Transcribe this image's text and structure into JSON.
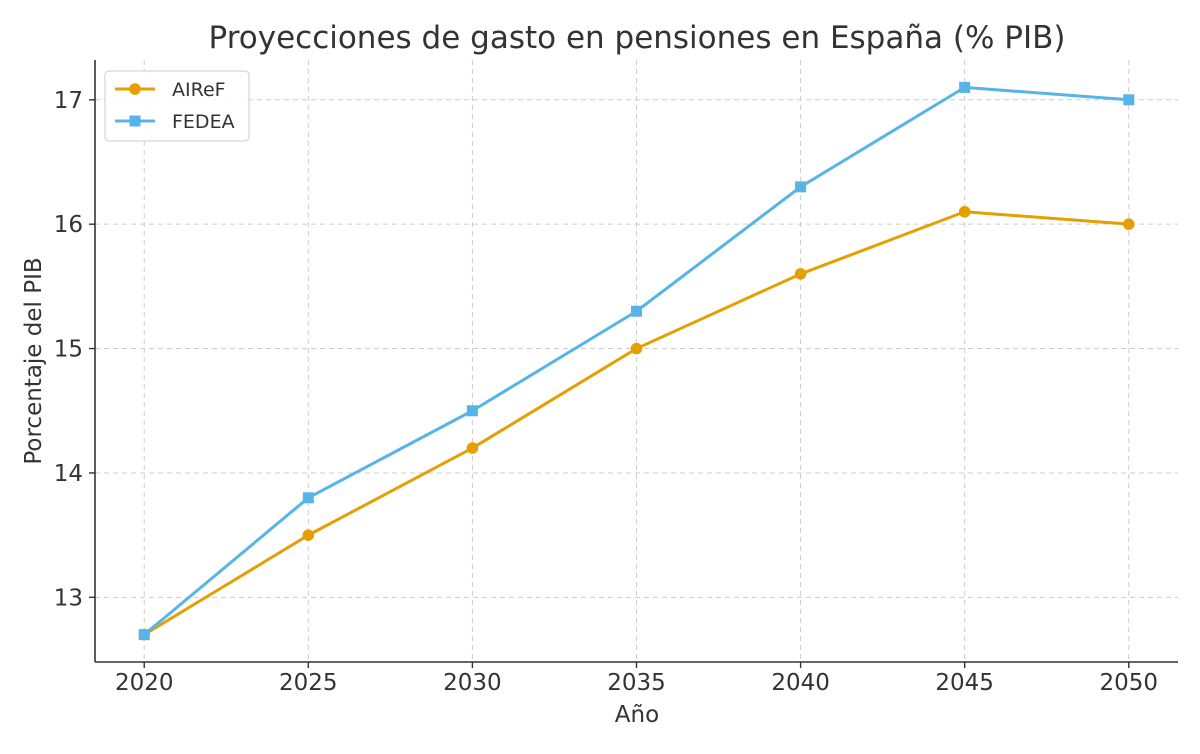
{
  "chart_data": {
    "type": "line",
    "title": "Proyecciones de gasto en pensiones en España (% PIB)",
    "xlabel": "Año",
    "ylabel": "Porcentaje del PIB",
    "x": [
      2020,
      2025,
      2030,
      2035,
      2040,
      2045,
      2050
    ],
    "xticks": [
      "2020",
      "2025",
      "2030",
      "2035",
      "2040",
      "2045",
      "2050"
    ],
    "yticks": [
      "13",
      "14",
      "15",
      "16",
      "17"
    ],
    "ylim": [
      12.48,
      17.32
    ],
    "xlim": [
      2018.5,
      2051.5
    ],
    "grid": true,
    "legend_position": "top-left",
    "series": [
      {
        "name": "AIReF",
        "color": "#E69F00",
        "marker": "circle",
        "values": [
          12.7,
          13.5,
          14.2,
          15.0,
          15.6,
          16.1,
          16.0
        ]
      },
      {
        "name": "FEDEA",
        "color": "#56B4E9",
        "marker": "square",
        "values": [
          12.7,
          13.8,
          14.5,
          15.3,
          16.3,
          17.1,
          17.0
        ]
      }
    ]
  }
}
